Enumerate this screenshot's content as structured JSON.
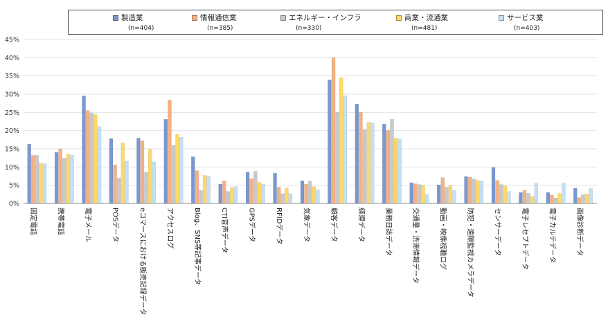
{
  "chart_data": {
    "type": "bar",
    "ylim": [
      0,
      45
    ],
    "yticks": [
      "0%",
      "5%",
      "10%",
      "15%",
      "20%",
      "25%",
      "30%",
      "35%",
      "40%",
      "45%"
    ],
    "grid": true,
    "legend_position": "top",
    "categories": [
      "固定電話",
      "携帯電話",
      "電子メール",
      "POSデータ",
      "eコマースにおける販売記録データ",
      "アクセスログ",
      "Blog、SNS等記事データ",
      "CTI音声データ",
      "GPSデータ",
      "RFIDデータ",
      "気象データ",
      "顧客データ",
      "経理データ",
      "業務日誌データ",
      "交通量・渋滞情報データ",
      "動画・映像視聴ログ",
      "防犯・遠隔監視カメラデータ",
      "センサーデータ",
      "電子レセプトデータ",
      "電子カルテデータ",
      "画像診断データ"
    ],
    "series": [
      {
        "name": "製造業",
        "n": "(n=404)",
        "color": "#7b97d0",
        "values": [
          16.3,
          14.0,
          29.5,
          17.8,
          17.9,
          23.1,
          12.8,
          5.3,
          8.6,
          8.3,
          6.2,
          33.9,
          27.3,
          21.8,
          5.7,
          5.1,
          7.4,
          9.9,
          3.0,
          3.0,
          4.2
        ]
      },
      {
        "name": "情報通信業",
        "n": "(n=385)",
        "color": "#f4b183",
        "values": [
          13.2,
          15.0,
          25.5,
          10.6,
          17.2,
          28.4,
          9.0,
          6.2,
          6.8,
          4.5,
          5.3,
          40.0,
          25.0,
          20.0,
          5.4,
          7.1,
          7.2,
          6.3,
          3.6,
          2.3,
          1.6
        ]
      },
      {
        "name": "エネルギー・インフラ",
        "n": "(n=330)",
        "color": "#c9c9c9",
        "values": [
          13.2,
          12.4,
          24.8,
          7.0,
          8.5,
          15.9,
          3.6,
          3.3,
          8.8,
          2.7,
          6.1,
          25.0,
          20.3,
          23.1,
          5.2,
          4.5,
          6.7,
          5.2,
          2.8,
          1.5,
          2.4
        ]
      },
      {
        "name": "商業・流通業",
        "n": "(n=481)",
        "color": "#ffd966",
        "values": [
          11.0,
          13.5,
          24.4,
          16.6,
          14.8,
          18.9,
          7.7,
          4.4,
          5.8,
          4.2,
          4.6,
          34.5,
          22.3,
          17.9,
          5.0,
          4.9,
          6.3,
          4.8,
          1.9,
          2.7,
          2.6
        ]
      },
      {
        "name": "サービス業",
        "n": "(n=403)",
        "color": "#c5e0f4",
        "values": [
          10.9,
          13.2,
          21.1,
          11.6,
          11.4,
          18.2,
          7.4,
          4.6,
          5.3,
          2.7,
          3.7,
          29.5,
          22.1,
          17.7,
          2.5,
          3.7,
          6.1,
          3.3,
          5.6,
          5.6,
          4.1
        ]
      }
    ]
  }
}
